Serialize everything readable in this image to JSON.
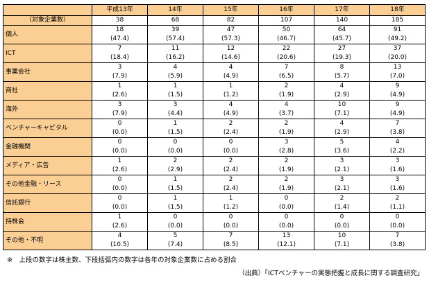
{
  "table": {
    "years": [
      "平成13年",
      "14年",
      "15年",
      "16年",
      "17年",
      "18年"
    ],
    "total_label": "（対象企業数）",
    "totals": [
      "38",
      "68",
      "82",
      "107",
      "140",
      "185"
    ],
    "rows": [
      {
        "label": "個人",
        "counts": [
          "18",
          "39",
          "47",
          "50",
          "64",
          "91"
        ],
        "pcts": [
          "(47.4)",
          "(57.4)",
          "(57.3)",
          "(46.7)",
          "(45.7)",
          "(49.2)"
        ]
      },
      {
        "label": "ICT",
        "counts": [
          "7",
          "11",
          "12",
          "22",
          "27",
          "37"
        ],
        "pcts": [
          "(18.4)",
          "(16.2)",
          "(14.6)",
          "(20.6)",
          "(19.3)",
          "(20.0)"
        ]
      },
      {
        "label": "事業会社",
        "counts": [
          "3",
          "4",
          "4",
          "7",
          "8",
          "13"
        ],
        "pcts": [
          "(7.9)",
          "(5.9)",
          "(4.9)",
          "(6.5)",
          "(5.7)",
          "(7.0)"
        ]
      },
      {
        "label": "商社",
        "counts": [
          "1",
          "1",
          "1",
          "2",
          "4",
          "9"
        ],
        "pcts": [
          "(2.6)",
          "(1.5)",
          "(1.2)",
          "(1.9)",
          "(2.9)",
          "(4.9)"
        ]
      },
      {
        "label": "海外",
        "counts": [
          "3",
          "3",
          "4",
          "4",
          "10",
          "9"
        ],
        "pcts": [
          "(7.9)",
          "(4.4)",
          "(4.9)",
          "(3.7)",
          "(7.1)",
          "(4.9)"
        ]
      },
      {
        "label": "ベンチャーキャピタル",
        "counts": [
          "0",
          "1",
          "2",
          "2",
          "4",
          "7"
        ],
        "pcts": [
          "(0.0)",
          "(1.5)",
          "(2.4)",
          "(1.9)",
          "(2.9)",
          "(3.8)"
        ]
      },
      {
        "label": "金融機関",
        "counts": [
          "0",
          "0",
          "0",
          "3",
          "5",
          "4"
        ],
        "pcts": [
          "(0.0)",
          "(0.0)",
          "(0.0)",
          "(2.8)",
          "(3.6)",
          "(2.2)"
        ]
      },
      {
        "label": "メディア・広告",
        "counts": [
          "1",
          "2",
          "2",
          "2",
          "3",
          "3"
        ],
        "pcts": [
          "(2.6)",
          "(2.9)",
          "(2.4)",
          "(1.9)",
          "(2.1)",
          "(1.6)"
        ]
      },
      {
        "label": "その他金融・リース",
        "counts": [
          "0",
          "1",
          "2",
          "2",
          "3",
          "3"
        ],
        "pcts": [
          "(0.0)",
          "(1.5)",
          "(2.4)",
          "(1.9)",
          "(2.1)",
          "(1.6)"
        ]
      },
      {
        "label": "信託銀行",
        "counts": [
          "0",
          "1",
          "1",
          "0",
          "2",
          "2"
        ],
        "pcts": [
          "(0.0)",
          "(1.5)",
          "(1.2)",
          "(0.0)",
          "(1.4)",
          "(1.1)"
        ]
      },
      {
        "label": "持株会",
        "counts": [
          "1",
          "0",
          "0",
          "0",
          "0",
          "0"
        ],
        "pcts": [
          "(2.6)",
          "(0.0)",
          "(0.0)",
          "(0.0)",
          "(0.0)",
          "(0.0)"
        ]
      },
      {
        "label": "その他・不明",
        "counts": [
          "4",
          "5",
          "7",
          "13",
          "10",
          "7"
        ],
        "pcts": [
          "(10.5)",
          "(7.4)",
          "(8.5)",
          "(12.1)",
          "(7.1)",
          "(3.8)"
        ]
      }
    ]
  },
  "footnote": "※　上段の数字は株主数、下段括弧内の数字は各年の対象企業数に占める割合",
  "source": "（出典）「ICTベンチャーの実態把握と成長に関する調査研究」",
  "colors": {
    "header_bg": "#fbcf94",
    "grid_line": "#000000"
  }
}
